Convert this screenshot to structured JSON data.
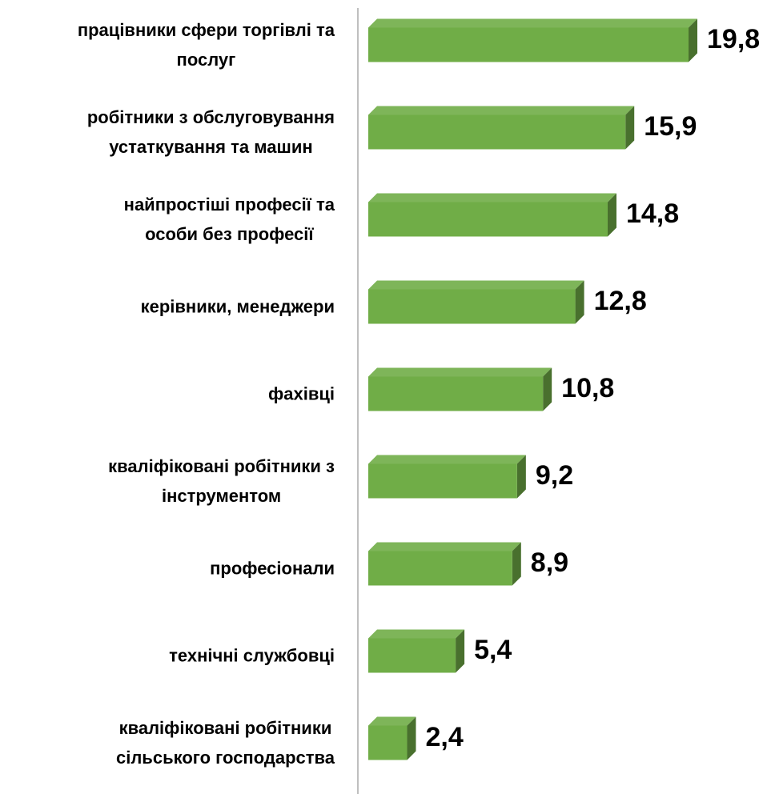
{
  "chart_data": {
    "type": "bar3d_horizontal",
    "categories": [
      "працівники сфери торгівлі та\nпослуг",
      "робітники з обслуговування\nустаткування та машин",
      "найпростіші професії та\nособи без професії",
      "керівники, менеджери",
      "фахівці",
      "кваліфіковані робітники з\nінструментом",
      "професіонали",
      "технічні службовці",
      "кваліфіковані робітники\nсільського господарства"
    ],
    "values": [
      19.8,
      15.9,
      14.8,
      12.8,
      10.8,
      9.2,
      8.9,
      5.4,
      2.4
    ],
    "value_labels": [
      "19,8",
      "15,9",
      "14,8",
      "12,8",
      "10,8",
      "9,2",
      "8,9",
      "5,4",
      "2,4"
    ],
    "color": "#70ad47"
  }
}
